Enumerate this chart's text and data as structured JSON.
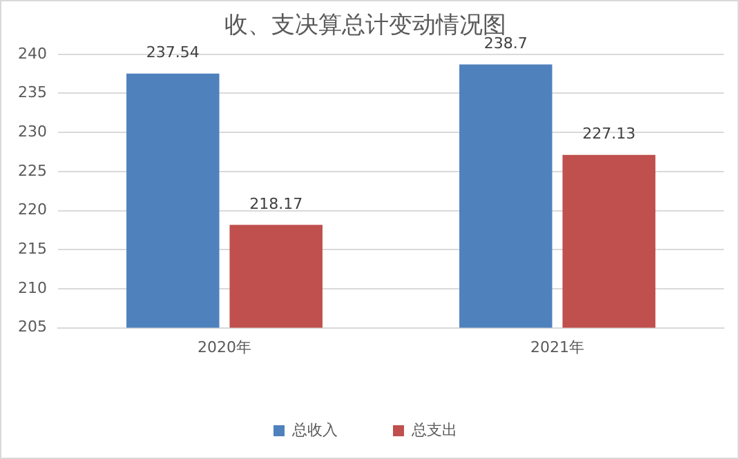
{
  "chart_data": {
    "type": "bar",
    "title": "收、支决算总计变动情况图",
    "categories": [
      "2020年",
      "2021年"
    ],
    "series": [
      {
        "name": "总收入",
        "color": "#4f81bd",
        "values": [
          237.54,
          238.7
        ]
      },
      {
        "name": "总支出",
        "color": "#c0504d",
        "values": [
          218.17,
          227.13
        ]
      }
    ],
    "ylim": [
      205,
      240
    ],
    "yticks": [
      205,
      210,
      215,
      220,
      225,
      230,
      235,
      240
    ],
    "grid": "y",
    "legend": "bottom",
    "data_labels": true
  }
}
